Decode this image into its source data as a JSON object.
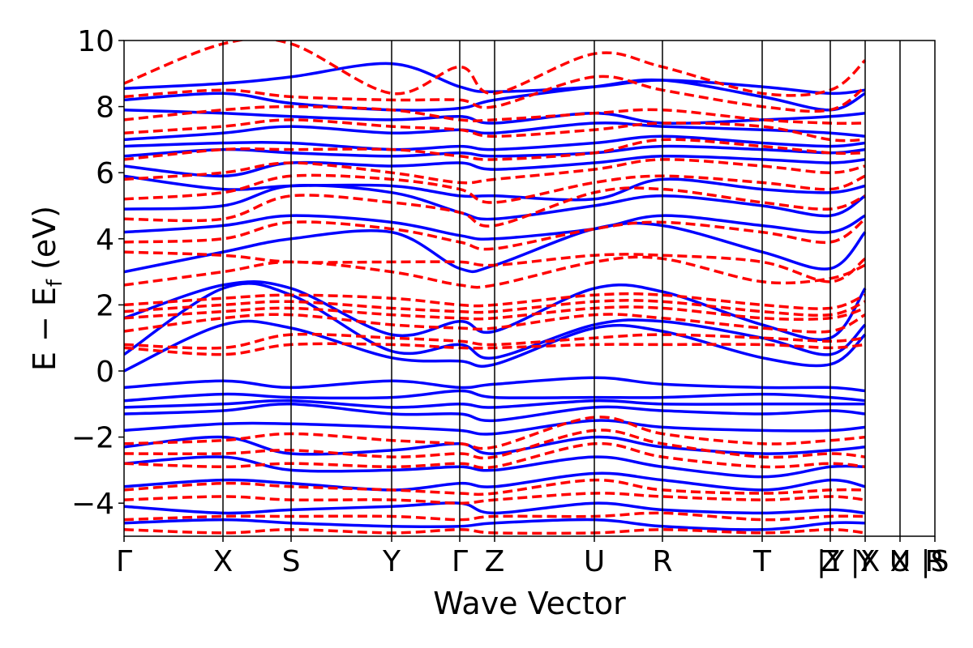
{
  "chart_data": {
    "type": "line",
    "title": "",
    "xlabel": "Wave Vector",
    "ylabel": "E − E",
    "ylabel_sub": "f",
    "ylabel_unit": " (eV)",
    "ylim": [
      -5,
      10
    ],
    "yticks": [
      -4,
      -2,
      0,
      2,
      4,
      6,
      8,
      10
    ],
    "yticklabels": [
      "−4",
      "−2",
      "0",
      "2",
      "4",
      "6",
      "8",
      "10"
    ],
    "xlim": [
      0,
      1
    ],
    "kpoints": [
      {
        "label": "Γ",
        "x": 0.0
      },
      {
        "label": "X",
        "x": 0.122
      },
      {
        "label": "S",
        "x": 0.206
      },
      {
        "label": "Y",
        "x": 0.33
      },
      {
        "label": "Γ",
        "x": 0.414
      },
      {
        "label": "Z",
        "x": 0.457
      },
      {
        "label": "U",
        "x": 0.58
      },
      {
        "label": "R",
        "x": 0.664
      },
      {
        "label": "T",
        "x": 0.787
      },
      {
        "label": "Z",
        "x": 0.871
      },
      {
        "label": "|Y",
        "x": 0.871
      },
      {
        "label": "Y",
        "x": 0.914
      },
      {
        "label": "|X",
        "x": 0.914
      },
      {
        "label": "X",
        "x": 0.957
      },
      {
        "label": "U",
        "x": 0.957
      },
      {
        "label": "|S",
        "x": 1.0
      },
      {
        "label": "R",
        "x": 1.0
      }
    ],
    "grid": false,
    "legend": "none",
    "series": [
      {
        "style": "solid",
        "color": "#0000ff",
        "bands": [
          [
            8.55,
            8.7,
            8.9,
            9.3,
            8.6,
            8.45,
            8.6,
            8.8,
            8.6,
            8.4,
            8.5
          ],
          [
            8.2,
            8.4,
            8.1,
            7.9,
            7.95,
            8.2,
            8.6,
            8.8,
            8.3,
            7.9,
            8.4
          ],
          [
            7.9,
            7.8,
            7.7,
            7.6,
            7.7,
            7.5,
            7.8,
            7.5,
            7.6,
            7.7,
            7.8
          ],
          [
            7.0,
            7.2,
            7.4,
            7.2,
            7.3,
            7.2,
            7.5,
            7.4,
            7.3,
            7.2,
            7.1
          ],
          [
            6.8,
            6.9,
            6.9,
            6.7,
            6.8,
            6.7,
            6.9,
            7.1,
            6.9,
            6.8,
            6.9
          ],
          [
            6.5,
            6.7,
            6.6,
            6.5,
            6.6,
            6.5,
            6.6,
            6.8,
            6.7,
            6.6,
            6.7
          ],
          [
            6.2,
            5.9,
            6.3,
            6.2,
            6.3,
            6.1,
            6.3,
            6.5,
            6.4,
            6.3,
            6.4
          ],
          [
            5.9,
            5.5,
            5.6,
            5.6,
            5.3,
            5.3,
            5.2,
            5.8,
            5.5,
            5.4,
            5.6
          ],
          [
            4.9,
            5.0,
            5.6,
            5.4,
            4.8,
            4.6,
            5.0,
            5.3,
            5.0,
            4.7,
            5.3
          ],
          [
            4.2,
            4.4,
            4.7,
            4.5,
            4.1,
            4.0,
            4.3,
            4.7,
            4.4,
            4.2,
            4.7
          ],
          [
            3.0,
            3.6,
            4.0,
            4.2,
            3.1,
            3.2,
            4.3,
            4.4,
            3.6,
            3.1,
            4.2
          ],
          [
            1.6,
            2.6,
            2.5,
            1.1,
            1.5,
            1.2,
            2.5,
            2.4,
            1.4,
            1.0,
            2.5
          ],
          [
            0.5,
            2.5,
            2.3,
            0.6,
            0.8,
            0.4,
            1.4,
            1.5,
            1.0,
            0.5,
            1.4
          ],
          [
            0.0,
            1.4,
            1.3,
            0.4,
            0.3,
            0.2,
            1.3,
            1.2,
            0.4,
            0.2,
            1.1
          ],
          [
            -0.5,
            -0.3,
            -0.5,
            -0.3,
            -0.5,
            -0.4,
            -0.2,
            -0.4,
            -0.5,
            -0.5,
            -0.6
          ],
          [
            -0.9,
            -0.7,
            -0.8,
            -0.8,
            -0.6,
            -0.8,
            -0.8,
            -0.8,
            -0.7,
            -0.8,
            -0.9
          ],
          [
            -1.1,
            -1.0,
            -0.9,
            -1.1,
            -1.0,
            -1.1,
            -0.9,
            -1.0,
            -1.0,
            -1.0,
            -1.0
          ],
          [
            -1.3,
            -1.2,
            -1.0,
            -1.3,
            -1.3,
            -1.5,
            -1.1,
            -1.2,
            -1.3,
            -1.2,
            -1.3
          ],
          [
            -1.8,
            -1.6,
            -1.6,
            -1.7,
            -1.8,
            -1.9,
            -1.5,
            -1.7,
            -1.8,
            -1.8,
            -1.7
          ],
          [
            -2.3,
            -2.0,
            -2.5,
            -2.4,
            -2.2,
            -2.5,
            -2.0,
            -2.3,
            -2.5,
            -2.4,
            -2.3
          ],
          [
            -2.8,
            -2.6,
            -3.0,
            -3.0,
            -2.9,
            -3.0,
            -2.6,
            -2.9,
            -3.2,
            -2.9,
            -2.9
          ],
          [
            -3.5,
            -3.3,
            -3.4,
            -3.6,
            -3.4,
            -3.5,
            -3.1,
            -3.3,
            -3.6,
            -3.3,
            -3.5
          ],
          [
            -4.1,
            -4.3,
            -4.2,
            -4.1,
            -4.0,
            -4.3,
            -4.0,
            -4.2,
            -4.3,
            -4.2,
            -4.3
          ],
          [
            -4.6,
            -4.5,
            -4.6,
            -4.7,
            -4.7,
            -4.6,
            -4.5,
            -4.7,
            -4.8,
            -4.6,
            -4.6
          ]
        ]
      },
      {
        "style": "dashed",
        "color": "#ff0000",
        "bands": [
          [
            8.7,
            9.9,
            9.9,
            8.4,
            9.2,
            8.4,
            9.6,
            9.2,
            8.4,
            8.5,
            9.4
          ],
          [
            8.3,
            8.5,
            8.3,
            8.2,
            8.2,
            8.0,
            8.9,
            8.5,
            8.0,
            7.9,
            8.6
          ],
          [
            7.6,
            7.9,
            8.0,
            7.9,
            7.6,
            7.6,
            7.8,
            7.9,
            7.6,
            7.5,
            7.5
          ],
          [
            7.2,
            7.4,
            7.6,
            7.4,
            7.3,
            7.1,
            7.3,
            7.5,
            7.4,
            7.0,
            7.0
          ],
          [
            6.4,
            6.7,
            6.7,
            6.7,
            6.5,
            6.4,
            6.6,
            7.0,
            6.8,
            6.6,
            6.6
          ],
          [
            5.8,
            6.0,
            6.3,
            6.0,
            5.7,
            5.8,
            6.1,
            6.4,
            6.2,
            6.0,
            6.2
          ],
          [
            5.2,
            5.4,
            5.9,
            5.8,
            5.5,
            5.1,
            5.7,
            5.9,
            5.7,
            5.5,
            5.9
          ],
          [
            4.6,
            4.6,
            5.3,
            5.1,
            4.8,
            4.4,
            5.4,
            5.5,
            5.1,
            4.9,
            5.3
          ],
          [
            3.9,
            4.0,
            4.5,
            4.3,
            3.9,
            3.7,
            4.3,
            4.5,
            4.2,
            3.9,
            4.6
          ],
          [
            3.6,
            3.5,
            3.3,
            3.3,
            3.3,
            3.2,
            3.5,
            3.5,
            3.3,
            2.7,
            3.4
          ],
          [
            2.6,
            3.0,
            3.3,
            3.0,
            2.6,
            2.6,
            3.3,
            3.4,
            2.7,
            2.8,
            3.2
          ],
          [
            2.0,
            2.2,
            2.3,
            2.2,
            2.0,
            2.0,
            2.3,
            2.3,
            2.0,
            1.9,
            2.3
          ],
          [
            1.8,
            2.0,
            2.1,
            1.9,
            1.8,
            1.8,
            2.1,
            2.1,
            1.8,
            1.7,
            2.1
          ],
          [
            1.6,
            1.8,
            1.9,
            1.7,
            1.6,
            1.6,
            1.9,
            1.9,
            1.6,
            1.6,
            1.9
          ],
          [
            1.2,
            1.6,
            1.7,
            1.4,
            1.3,
            1.3,
            1.7,
            1.6,
            1.3,
            1.2,
            1.7
          ],
          [
            0.8,
            0.7,
            1.1,
            1.0,
            0.9,
            0.8,
            1.0,
            1.1,
            1.0,
            0.9,
            1.0
          ],
          [
            0.7,
            0.5,
            0.8,
            0.8,
            0.7,
            0.7,
            0.8,
            0.8,
            0.8,
            0.7,
            0.8
          ],
          [
            -2.2,
            -2.1,
            -1.9,
            -2.1,
            -2.2,
            -2.3,
            -1.4,
            -1.9,
            -2.2,
            -2.1,
            -2.0
          ],
          [
            -2.5,
            -2.5,
            -2.4,
            -2.6,
            -2.5,
            -2.6,
            -1.8,
            -2.2,
            -2.6,
            -2.5,
            -2.6
          ],
          [
            -2.8,
            -2.9,
            -2.8,
            -2.9,
            -2.8,
            -2.9,
            -2.2,
            -2.6,
            -2.9,
            -2.8,
            -2.9
          ],
          [
            -3.6,
            -3.4,
            -3.5,
            -3.6,
            -3.7,
            -3.7,
            -3.3,
            -3.6,
            -3.7,
            -3.6,
            -3.6
          ],
          [
            -3.9,
            -3.8,
            -3.9,
            -3.9,
            -4.0,
            -3.9,
            -3.7,
            -3.8,
            -3.9,
            -3.8,
            -3.9
          ],
          [
            -4.5,
            -4.4,
            -4.4,
            -4.4,
            -4.5,
            -4.4,
            -4.4,
            -4.3,
            -4.5,
            -4.4,
            -4.4
          ],
          [
            -4.8,
            -4.9,
            -4.8,
            -4.9,
            -4.8,
            -4.9,
            -4.9,
            -4.8,
            -4.9,
            -4.8,
            -4.9
          ]
        ]
      }
    ]
  }
}
